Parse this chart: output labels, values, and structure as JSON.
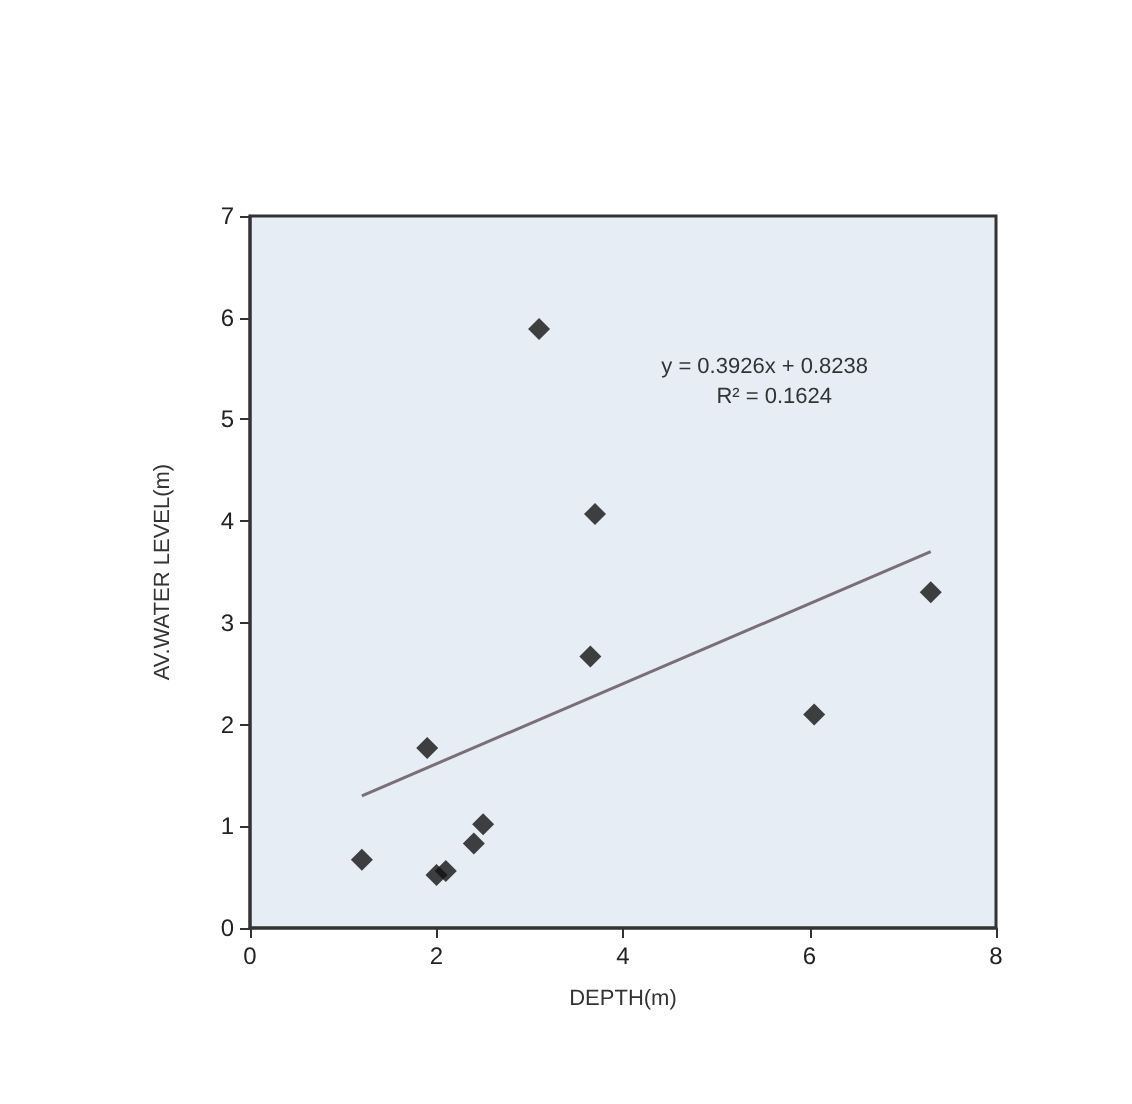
{
  "chart_data": {
    "type": "scatter",
    "xlabel": "DEPTH(m)",
    "ylabel": "AV.WATER LEVEL(m)",
    "annotations": [
      "y = 0.3926x + 0.8238",
      "R² = 0.1624"
    ],
    "xlim": [
      0,
      8
    ],
    "xticks": [
      0,
      2,
      4,
      6,
      8
    ],
    "ylim": [
      0,
      7
    ],
    "yticks": [
      0,
      1,
      2,
      3,
      4,
      5,
      6,
      7
    ],
    "grid": false,
    "marker": "diamond",
    "series": [
      {
        "color": "#111111",
        "x": [
          1.2,
          1.9,
          2.0,
          2.1,
          2.4,
          2.5,
          3.1,
          3.7,
          3.65,
          6.05,
          7.3
        ],
        "values": [
          0.67,
          1.77,
          0.52,
          0.56,
          0.83,
          1.02,
          5.89,
          4.07,
          2.67,
          2.1,
          3.3
        ]
      },
      {
        "type": "line",
        "marker": "none",
        "color": "#7a6f78",
        "x": [
          1.2,
          7.3
        ],
        "values": [
          1.3,
          3.7
        ]
      }
    ]
  }
}
